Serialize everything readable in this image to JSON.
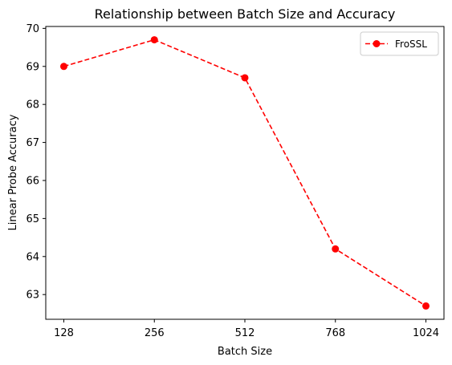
{
  "chart_data": {
    "type": "line",
    "title": "Relationship between Batch Size and Accuracy",
    "xlabel": "Batch Size",
    "ylabel": "Linear Probe Accuracy",
    "categories": [
      "128",
      "256",
      "512",
      "768",
      "1024"
    ],
    "series": [
      {
        "name": "FroSSL",
        "values": [
          69.0,
          69.7,
          68.7,
          64.2,
          62.7
        ],
        "color": "#ff0000",
        "line_style": "dashed",
        "marker": "circle"
      }
    ],
    "ylim": [
      62.35,
      70.05
    ],
    "yticks": [
      63,
      64,
      65,
      66,
      67,
      68,
      69,
      70
    ],
    "grid": false,
    "legend_position": "top-right"
  }
}
